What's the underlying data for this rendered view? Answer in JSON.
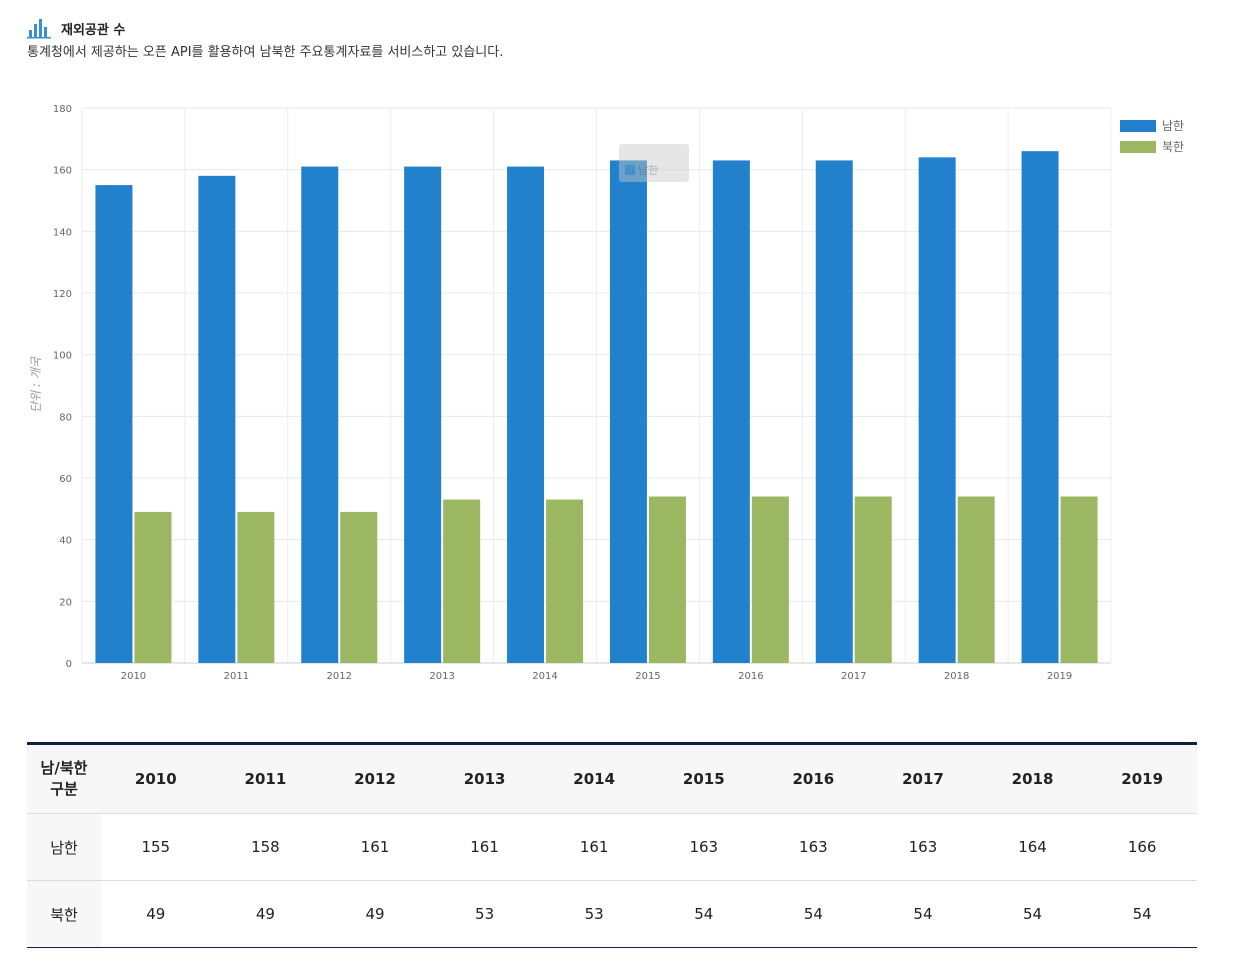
{
  "header": {
    "title": "재외공관 수",
    "description": "통계청에서 제공하는 오픈 API를 활용하여 남북한 주요통계자료를 서비스하고 있습니다."
  },
  "tooltip": {
    "label": "남한"
  },
  "colors": {
    "south": "#2281cc",
    "north": "#9bb761",
    "table_top_border": "#0c2340"
  },
  "chart_data": {
    "type": "bar",
    "categories": [
      "2010",
      "2011",
      "2012",
      "2013",
      "2014",
      "2015",
      "2016",
      "2017",
      "2018",
      "2019"
    ],
    "series": [
      {
        "name": "남한",
        "values": [
          155,
          158,
          161,
          161,
          161,
          163,
          163,
          163,
          164,
          166
        ]
      },
      {
        "name": "북한",
        "values": [
          49,
          49,
          49,
          53,
          53,
          54,
          54,
          54,
          54,
          54
        ]
      }
    ],
    "ylabel": "단위 : 개국",
    "ylim": [
      0,
      180
    ],
    "yticks": [
      0,
      20,
      40,
      60,
      80,
      100,
      120,
      140,
      160,
      180
    ],
    "grid": true,
    "legend_position": "top-right"
  },
  "table": {
    "header_label_line1": "남/북한",
    "header_label_line2": "구분",
    "years": [
      "2010",
      "2011",
      "2012",
      "2013",
      "2014",
      "2015",
      "2016",
      "2017",
      "2018",
      "2019"
    ],
    "rows": [
      {
        "label": "남한",
        "values": [
          "155",
          "158",
          "161",
          "161",
          "161",
          "163",
          "163",
          "163",
          "164",
          "166"
        ]
      },
      {
        "label": "북한",
        "values": [
          "49",
          "49",
          "49",
          "53",
          "53",
          "54",
          "54",
          "54",
          "54",
          "54"
        ]
      }
    ]
  }
}
